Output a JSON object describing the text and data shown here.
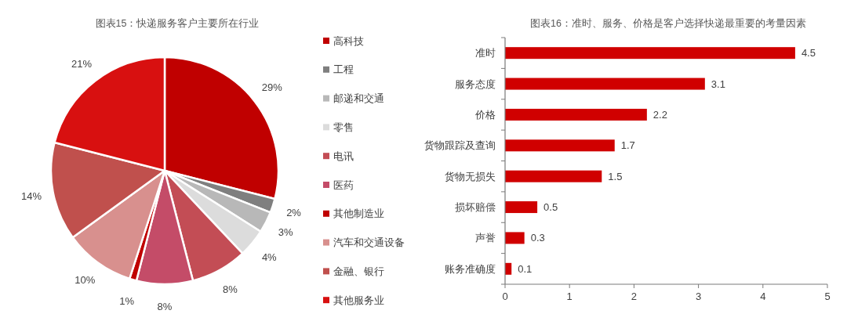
{
  "chart_data": [
    {
      "type": "pie",
      "title": "图表15：快递服务客户主要所在行业",
      "categories": [
        "高科技",
        "工程",
        "邮递和交通",
        "零售",
        "电讯",
        "医药",
        "其他制造业",
        "汽车和交通设备",
        "金融、银行",
        "其他服务业"
      ],
      "values": [
        29,
        2,
        3,
        4,
        8,
        8,
        1,
        10,
        14,
        21
      ],
      "colors": [
        "#c00000",
        "#7f7f7f",
        "#b8b8b8",
        "#dcdcdc",
        "#c34d55",
        "#c44c68",
        "#c00000",
        "#d8908e",
        "#c0504d",
        "#d81010"
      ],
      "value_labels": [
        "29%",
        "2%",
        "3%",
        "4%",
        "8%",
        "8%",
        "1%",
        "10%",
        "14%",
        "21%"
      ],
      "legend": "right"
    },
    {
      "type": "bar",
      "orientation": "horizontal",
      "title": "图表16：准时、服务、价格是客户选择快递最重要的考量因素",
      "categories": [
        "准时",
        "服务态度",
        "价格",
        "货物跟踪及查询",
        "货物无损失",
        "损坏赔偿",
        "声誉",
        "账务准确度"
      ],
      "values": [
        4.5,
        3.1,
        2.2,
        1.7,
        1.5,
        0.5,
        0.3,
        0.1
      ],
      "color": "#d00000",
      "xlim": [
        0,
        5
      ],
      "xticks": [
        0,
        1,
        2,
        3,
        4,
        5
      ],
      "data_labels": true
    }
  ]
}
